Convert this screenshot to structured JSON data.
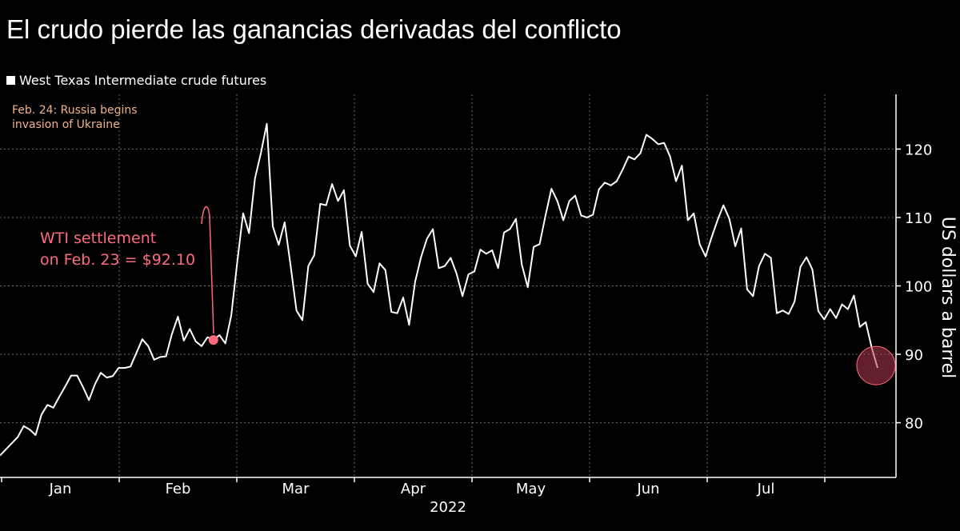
{
  "title": "El crudo pierde las ganancias derivadas del conflicto",
  "legend": {
    "label": "West Texas Intermediate crude futures"
  },
  "annotations": {
    "invasion": [
      "Feb. 24: Russia begins",
      "invasion of Ukraine"
    ],
    "settlement": [
      "WTI settlement",
      "on Feb. 23 = $92.10"
    ]
  },
  "colors": {
    "background": "#000000",
    "line": "#ffffff",
    "grid": "#6e6e6e",
    "settlement": "#ff6b7c",
    "invasion_note": "#f0b48a",
    "highlight": "#b23a50"
  },
  "chart_data": {
    "type": "line",
    "ylabel": "US dollars a barrel",
    "year_label": "2022",
    "ylim": [
      72,
      128
    ],
    "yticks": [
      80,
      90,
      100,
      110,
      120
    ],
    "month_labels": [
      "Jan",
      "Feb",
      "Mar",
      "Apr",
      "May",
      "Jun",
      "Jul"
    ],
    "grid": true,
    "legend_position": "top-left",
    "series": [
      {
        "name": "West Texas Intermediate crude futures",
        "values": [
          75.2,
          76.1,
          77.0,
          77.9,
          79.5,
          79.0,
          78.2,
          81.2,
          82.6,
          82.2,
          83.8,
          85.3,
          86.9,
          86.9,
          85.2,
          83.3,
          85.6,
          87.3,
          86.6,
          86.8,
          88.0,
          88.0,
          88.2,
          90.2,
          92.2,
          91.2,
          89.2,
          89.6,
          89.7,
          93.0,
          95.5,
          92.0,
          93.7,
          91.9,
          91.2,
          92.5,
          92.1,
          92.8,
          91.6,
          95.7,
          103.4,
          110.6,
          107.7,
          115.7,
          119.4,
          123.7,
          108.7,
          106.0,
          109.3,
          103.0,
          96.4,
          95.0,
          102.9,
          104.5,
          112.0,
          111.8,
          114.9,
          112.4,
          114.0,
          105.9,
          104.3,
          107.9,
          100.3,
          99.1,
          103.3,
          102.3,
          96.2,
          96.0,
          98.3,
          94.3,
          100.6,
          104.2,
          106.9,
          108.3,
          102.6,
          102.9,
          104.1,
          101.8,
          98.5,
          101.7,
          102.1,
          105.3,
          104.7,
          105.2,
          102.6,
          107.8,
          108.3,
          109.8,
          103.1,
          99.8,
          105.7,
          106.1,
          110.3,
          114.2,
          112.4,
          109.6,
          112.4,
          113.2,
          110.3,
          110.0,
          110.4,
          114.1,
          115.1,
          114.7,
          115.3,
          117.0,
          118.9,
          118.5,
          119.4,
          122.1,
          121.5,
          120.7,
          120.9,
          118.9,
          115.3,
          117.6,
          109.6,
          110.6,
          106.1,
          104.3,
          107.1,
          109.6,
          111.8,
          109.8,
          105.8,
          108.4,
          99.5,
          98.5,
          102.9,
          104.7,
          104.1,
          96.0,
          96.4,
          95.9,
          97.7,
          102.8,
          104.2,
          102.4,
          96.3,
          95.1,
          96.6,
          95.3,
          97.3,
          96.6,
          98.6,
          94.0,
          94.7,
          91.0,
          88.0
        ]
      }
    ]
  }
}
